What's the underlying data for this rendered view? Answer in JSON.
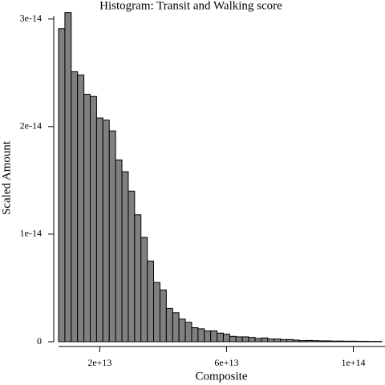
{
  "chart_data": {
    "type": "histogram",
    "title": "Histogram: Transit and Walking score",
    "x_label": "Composite",
    "y_label": "Scaled Amount",
    "bins": [
      7000000000000.0,
      9000000000000.0,
      11000000000000.0,
      13000000000000.0,
      15000000000000.0,
      17000000000000.0,
      19000000000000.0,
      21000000000000.0,
      23000000000000.0,
      25000000000000.0,
      27000000000000.0,
      29000000000000.0,
      31000000000000.0,
      33000000000000.0,
      35000000000000.0,
      37000000000000.0,
      39000000000000.0,
      41000000000000.0,
      43000000000000.0,
      45000000000000.0,
      47000000000000.0,
      49000000000000.0,
      51000000000000.0,
      53000000000000.0,
      55000000000000.0,
      57000000000000.0,
      59000000000000.0,
      61000000000000.0,
      63000000000000.0,
      65000000000000.0,
      67000000000000.0,
      69000000000000.0,
      71000000000000.0,
      73000000000000.0,
      75000000000000.0,
      77000000000000.0,
      79000000000000.0,
      81000000000000.0,
      83000000000000.0,
      85000000000000.0,
      87000000000000.0,
      89000000000000.0,
      91000000000000.0,
      93000000000000.0,
      95000000000000.0,
      97000000000000.0,
      99000000000000.0,
      101000000000000.0,
      103000000000000.0,
      105000000000000.0,
      107000000000000.0,
      109000000000000.0
    ],
    "values": [
      2.91e-14,
      3.06e-14,
      2.51e-14,
      2.48e-14,
      2.3e-14,
      2.28e-14,
      2.08e-14,
      2.06e-14,
      1.96e-14,
      1.69e-14,
      1.58e-14,
      1.4e-14,
      1.18e-14,
      9.7e-15,
      7.5e-15,
      5.5e-15,
      4.8e-15,
      3.1e-15,
      2.7e-15,
      2.1e-15,
      1.8e-15,
      1.3e-15,
      1.2e-15,
      1e-15,
      1e-15,
      8e-16,
      7e-16,
      5e-16,
      4.5e-16,
      4.5e-16,
      4e-16,
      3e-16,
      3.5e-16,
      2.5e-16,
      2.5e-16,
      2e-16,
      2e-16,
      1.5e-16,
      1e-16,
      1.2e-16,
      1e-16,
      8e-17,
      8e-17,
      6e-17,
      6e-17,
      5e-17,
      5e-17,
      4e-17,
      4e-17,
      3e-17,
      3e-17
    ],
    "color": "#808080",
    "xlim": [
      7000000000000.0,
      110000000000000.0
    ],
    "xticks": [
      {
        "value": 20000000000000.0,
        "label": "2e+13"
      },
      {
        "value": 60000000000000.0,
        "label": "6e+13"
      },
      {
        "value": 100000000000000.0,
        "label": "1e+14"
      }
    ],
    "ylim": [
      0,
      3.05e-14
    ],
    "yticks": [
      0,
      {
        "value": 1e-14,
        "label": "1e-14"
      },
      {
        "value": 2e-14,
        "label": "2e-14"
      },
      {
        "value": 3e-14,
        "label": "3e-14"
      }
    ]
  }
}
